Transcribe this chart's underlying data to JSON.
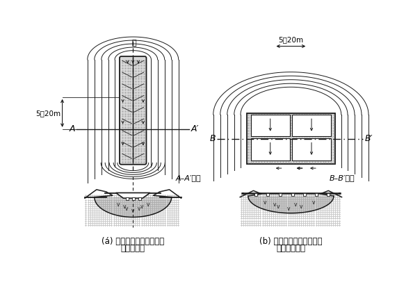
{
  "fig_a_label": "(á) 水の流出方向と盛土が",
  "fig_a_label2": "平行な場合",
  "fig_b_label": "(b) 水の流出方向と盛土が",
  "fig_b_label2": "直交する場合",
  "label_a_section": "A–A′断面",
  "label_b_section": "B–B′断面",
  "dim_label_vert": "5～20m",
  "dim_label_horiz": "5～20m",
  "label_A": "A",
  "label_A2": "A′",
  "label_B": "B",
  "label_B2": "B′",
  "label_CL": "℄",
  "bg_color": "#ffffff",
  "line_color": "#1a1a1a",
  "gray_fill": "#d8d8d8",
  "dot_fill": "#c0c0c0"
}
